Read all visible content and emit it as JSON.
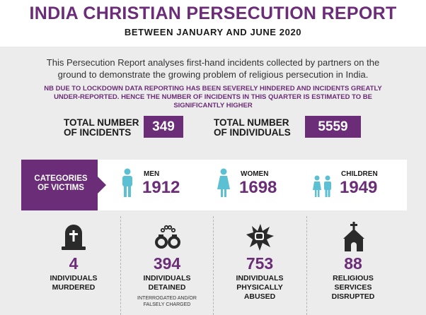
{
  "header": {
    "title": "INDIA CHRISTIAN PERSECUTION REPORT",
    "subtitle": "BETWEEN JANUARY AND JUNE 2020"
  },
  "intro": "This Persecution Report analyses first-hand incidents collected by partners on the ground to demonstrate the growing problem of religious persecution in India.",
  "note": "NB DUE TO LOCKDOWN DATA REPORTING HAS BEEN SEVERELY HINDERED AND INCIDENTS GREATLY UNDER-REPORTED.  HENCE THE NUMBER OF INCIDENTS IN THIS QUARTER  IS ESTIMATED TO BE SIGNIFICANTLY HIGHER",
  "totals": {
    "incidents_label_1": "TOTAL NUMBER",
    "incidents_label_2": "OF INCIDENTS",
    "incidents_value": "349",
    "individuals_label_1": "TOTAL NUMBER",
    "individuals_label_2": "OF INDIVIDUALS",
    "individuals_value": "5559"
  },
  "categories": {
    "tag_line_1": "CATEGORIES",
    "tag_line_2": "OF VICTIMS",
    "men_label": "MEN",
    "men_value": "1912",
    "women_label": "WOMEN",
    "women_value": "1698",
    "children_label": "CHILDREN",
    "children_value": "1949"
  },
  "columns": [
    {
      "icon": "tombstone-icon",
      "value": "4",
      "label_1": "INDIVIDUALS",
      "label_2": "MURDERED",
      "label_3": ""
    },
    {
      "icon": "handcuffs-icon",
      "value": "394",
      "label_1": "INDIVIDUALS",
      "label_2": "DETAINED",
      "label_3": "",
      "sub_1": "INTERROGATED AND/OR",
      "sub_2": "FALSELY CHARGED"
    },
    {
      "icon": "fist-icon",
      "value": "753",
      "label_1": "INDIVIDUALS",
      "label_2": "PHYSICALLY",
      "label_3": "ABUSED"
    },
    {
      "icon": "church-icon",
      "value": "88",
      "label_1": "RELIGIOUS",
      "label_2": "SERVICES",
      "label_3": "DISRUPTED"
    }
  ],
  "colors": {
    "accent": "#6b2d77",
    "icon_teal": "#5bc0d3",
    "background": "#ececec"
  }
}
